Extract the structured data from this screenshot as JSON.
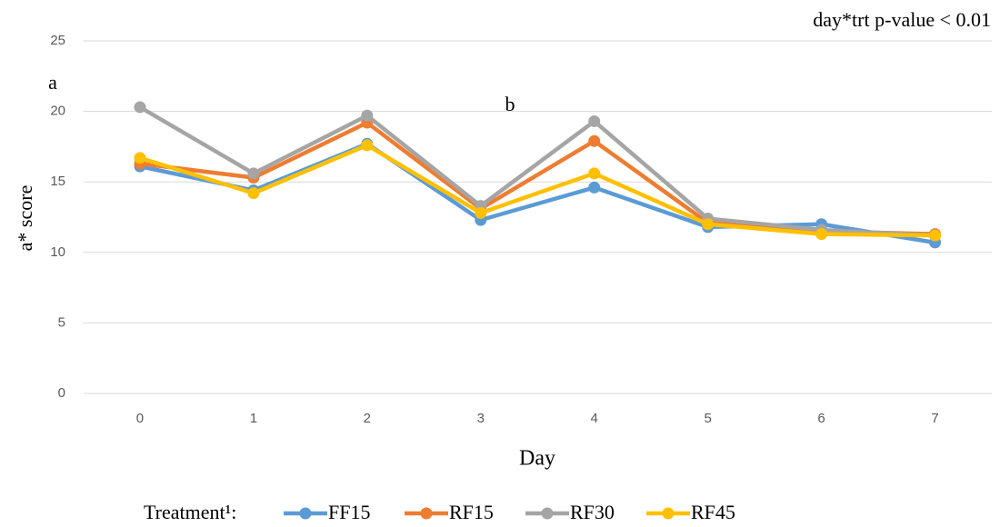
{
  "chart_data": {
    "type": "line",
    "annotations": [
      "day*trt p-value < 0.01",
      "a",
      "b"
    ],
    "x_label": "Day",
    "y_label": "a* score",
    "categories": [
      "0",
      "1",
      "2",
      "3",
      "4",
      "5",
      "6",
      "7"
    ],
    "ylim": [
      0,
      25
    ],
    "yticks": [
      0,
      5,
      10,
      15,
      20,
      25
    ],
    "grid": true,
    "legend_title": "Treatment¹:",
    "legend": "bottom",
    "series": [
      {
        "name": "FF15",
        "color": "#5b9bd5",
        "values": [
          16.1,
          14.4,
          17.7,
          12.3,
          14.6,
          11.8,
          12.0,
          10.7
        ]
      },
      {
        "name": "RF15",
        "color": "#ed7d31",
        "values": [
          16.3,
          15.3,
          19.2,
          13.1,
          17.9,
          12.1,
          11.5,
          11.3
        ]
      },
      {
        "name": "RF30",
        "color": "#a5a5a5",
        "values": [
          20.3,
          15.6,
          19.7,
          13.3,
          19.3,
          12.4,
          11.6,
          11.2
        ]
      },
      {
        "name": "RF45",
        "color": "#ffc000",
        "values": [
          16.7,
          14.2,
          17.6,
          12.8,
          15.6,
          12.0,
          11.3,
          11.2
        ]
      }
    ]
  }
}
